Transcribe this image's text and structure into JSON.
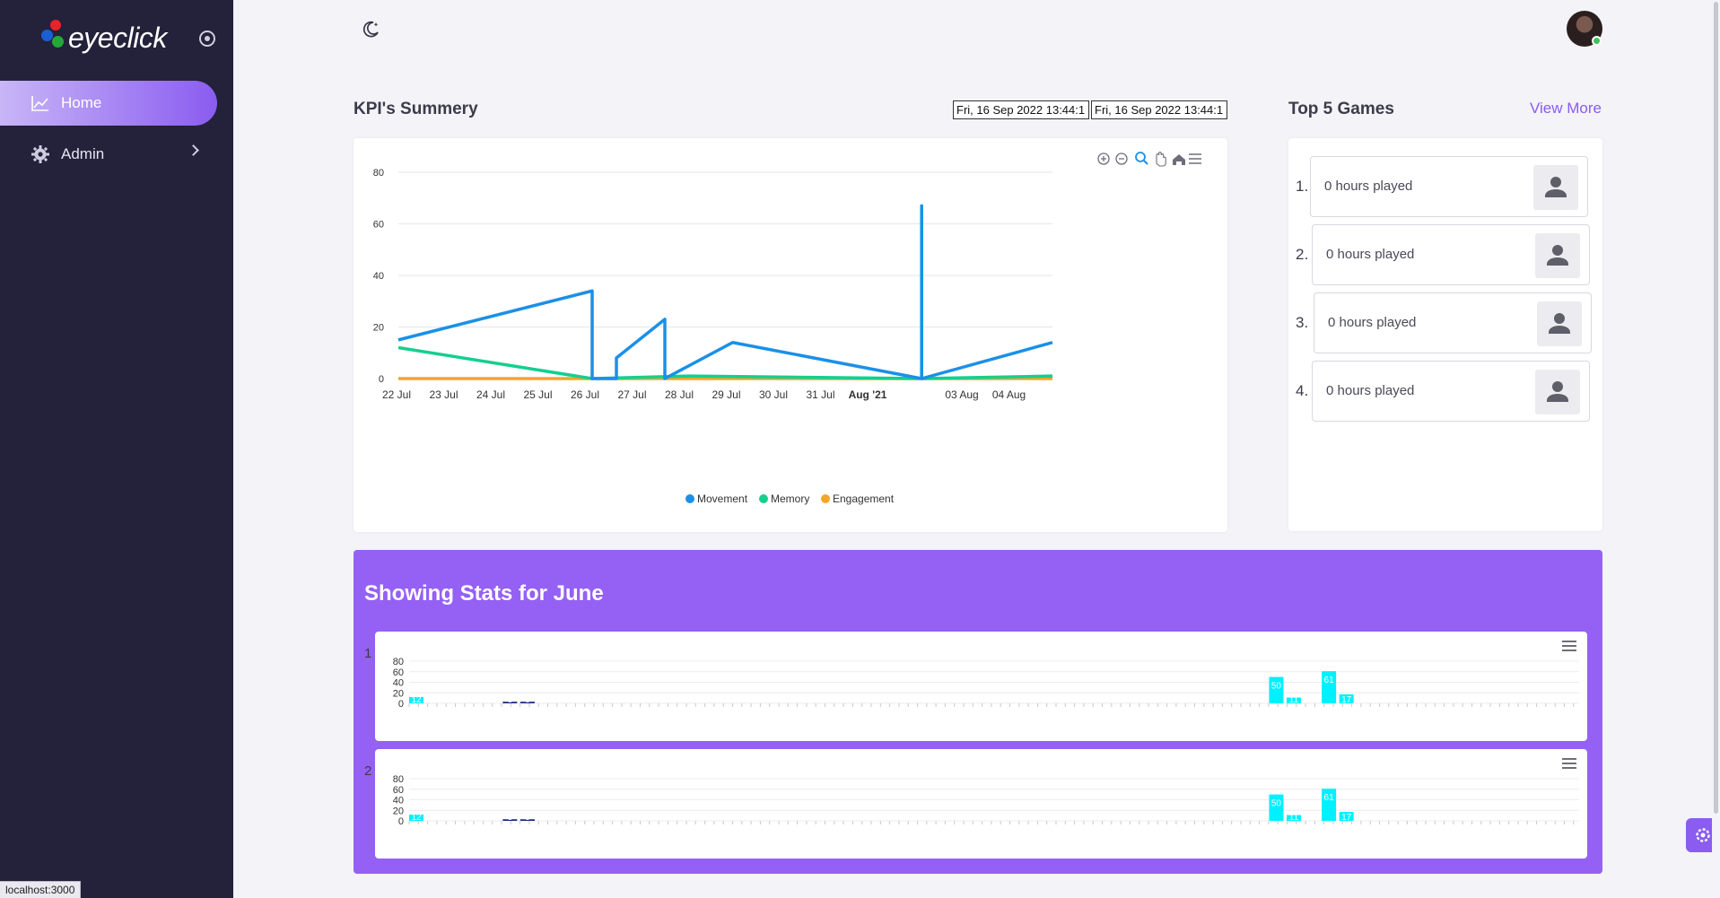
{
  "app": {
    "logo_text": "eyeclick"
  },
  "sidebar": {
    "items": [
      {
        "label": "Home",
        "icon": "chart-line-icon",
        "active": true
      },
      {
        "label": "Admin",
        "icon": "gear-icon",
        "active": false
      }
    ]
  },
  "status_bar": {
    "url": "localhost:3000"
  },
  "kpi": {
    "title": "KPI's Summery",
    "date_from": "Fri, 16 Sep 2022 13:44:1",
    "date_to": "Fri, 16 Sep 2022 13:44:1"
  },
  "top_games": {
    "title": "Top 5 Games",
    "view_more": "View More",
    "items": [
      {
        "rank": "1.",
        "label": "0 hours played"
      },
      {
        "rank": "2.",
        "label": "0 hours played"
      },
      {
        "rank": "3.",
        "label": "0 hours played"
      },
      {
        "rank": "4.",
        "label": "0 hours played"
      }
    ]
  },
  "stats": {
    "title": "Showing Stats for June",
    "rows": [
      "1",
      "2"
    ]
  },
  "colors": {
    "movement": "#1a90e8",
    "memory": "#14cf8e",
    "engagement": "#f4a52a",
    "accent": "#8a5cf0",
    "bar": "#00f0ff",
    "bar_dark": "#1a2a80"
  },
  "chart_data": [
    {
      "type": "line",
      "x_tick_labels": [
        "22 Jul",
        "23 Jul",
        "24 Jul",
        "25 Jul",
        "26 Jul",
        "27 Jul",
        "28 Jul",
        "29 Jul",
        "30 Jul",
        "31 Jul",
        "Aug '21",
        "03 Aug",
        "04 Aug"
      ],
      "y_tick_labels": [
        "0",
        "20",
        "40",
        "60",
        "80"
      ],
      "ylim": [
        0,
        80
      ],
      "xlim": [
        0,
        13.5
      ],
      "legend_position": "bottom",
      "grid": true,
      "series": [
        {
          "name": "Movement",
          "color": "#1a90e8",
          "points": [
            [
              0,
              15
            ],
            [
              4,
              34
            ],
            [
              4,
              0
            ],
            [
              4.5,
              0
            ],
            [
              4.5,
              8
            ],
            [
              5.5,
              23
            ],
            [
              5.5,
              0
            ],
            [
              6.9,
              14
            ],
            [
              10.8,
              0
            ],
            [
              10.8,
              67
            ],
            [
              10.8,
              0
            ],
            [
              13.5,
              14
            ]
          ]
        },
        {
          "name": "Memory",
          "color": "#14cf8e",
          "points": [
            [
              0,
              12
            ],
            [
              4,
              0
            ],
            [
              6,
              1
            ],
            [
              10.8,
              0
            ],
            [
              10.8,
              61
            ],
            [
              10.8,
              0
            ],
            [
              13.5,
              1
            ]
          ]
        },
        {
          "name": "Engagement",
          "color": "#f4a52a",
          "points": [
            [
              0,
              0
            ],
            [
              13.5,
              0
            ]
          ]
        }
      ]
    },
    {
      "type": "bar",
      "ylim": [
        0,
        80
      ],
      "y_tick_labels": [
        "0",
        "20",
        "40",
        "60",
        "80"
      ],
      "data_labels": [
        "12",
        "3",
        "3",
        "50",
        "11",
        "61",
        "17"
      ],
      "bars": [
        {
          "pos": 0.0,
          "value": 12,
          "color": "#00f0ff",
          "label": "12"
        },
        {
          "pos": 0.08,
          "value": 3,
          "color": "#1a2a80",
          "label": "3"
        },
        {
          "pos": 0.095,
          "value": 3,
          "color": "#1a2a80",
          "label": "3"
        },
        {
          "pos": 0.735,
          "value": 50,
          "color": "#00f0ff",
          "label": "50"
        },
        {
          "pos": 0.75,
          "value": 11,
          "color": "#00f0ff",
          "label": "11"
        },
        {
          "pos": 0.78,
          "value": 61,
          "color": "#00f0ff",
          "label": "61"
        },
        {
          "pos": 0.795,
          "value": 17,
          "color": "#00f0ff",
          "label": "17"
        }
      ]
    },
    {
      "type": "bar",
      "ylim": [
        0,
        80
      ],
      "y_tick_labels": [
        "0",
        "20",
        "40",
        "60",
        "80"
      ],
      "data_labels": [
        "12",
        "3",
        "3",
        "50",
        "11",
        "61",
        "17"
      ],
      "bars": [
        {
          "pos": 0.0,
          "value": 12,
          "color": "#00f0ff",
          "label": "12"
        },
        {
          "pos": 0.08,
          "value": 3,
          "color": "#1a2a80",
          "label": "3"
        },
        {
          "pos": 0.095,
          "value": 3,
          "color": "#1a2a80",
          "label": "3"
        },
        {
          "pos": 0.735,
          "value": 50,
          "color": "#00f0ff",
          "label": "50"
        },
        {
          "pos": 0.75,
          "value": 11,
          "color": "#00f0ff",
          "label": "11"
        },
        {
          "pos": 0.78,
          "value": 61,
          "color": "#00f0ff",
          "label": "61"
        },
        {
          "pos": 0.795,
          "value": 17,
          "color": "#00f0ff",
          "label": "17"
        }
      ]
    }
  ]
}
